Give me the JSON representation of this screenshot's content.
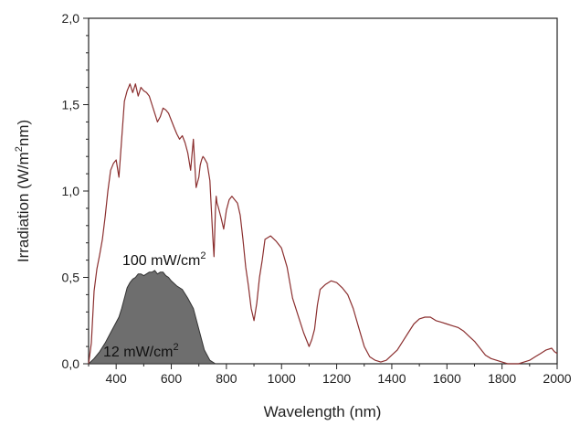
{
  "chart_data": {
    "type": "line",
    "xlabel": "Wavelength (nm)",
    "ylabel_main": "Irradiation (W/m",
    "ylabel_sup": "2",
    "ylabel_end": "nm)",
    "xlim": [
      300,
      2000
    ],
    "ylim": [
      0.0,
      2.0
    ],
    "x_ticks": [
      400,
      600,
      800,
      1000,
      1200,
      1400,
      1600,
      1800,
      2000
    ],
    "x_tick_labels": [
      "400",
      "600",
      "800",
      "1000",
      "1200",
      "1400",
      "1600",
      "1800",
      "2000"
    ],
    "y_ticks": [
      0.0,
      0.5,
      1.0,
      1.5,
      2.0
    ],
    "y_tick_labels": [
      "0,0",
      "0,5",
      "1,0",
      "1,5",
      "2,0"
    ],
    "grid": false,
    "colors": {
      "spectrum_line": "#8b2f2f",
      "filled_area": "#6e6e6e"
    },
    "series": [
      {
        "kind": "line",
        "x": [
          300,
          310,
          320,
          330,
          340,
          350,
          360,
          370,
          380,
          390,
          400,
          410,
          420,
          430,
          440,
          450,
          460,
          470,
          480,
          490,
          500,
          510,
          520,
          530,
          540,
          550,
          560,
          570,
          580,
          590,
          600,
          610,
          620,
          630,
          640,
          650,
          660,
          670,
          680,
          690,
          700,
          705,
          710,
          715,
          720,
          730,
          740,
          750,
          755,
          760,
          763,
          766,
          770,
          780,
          790,
          800,
          810,
          820,
          830,
          840,
          850,
          860,
          870,
          880,
          890,
          900,
          910,
          920,
          930,
          940,
          960,
          980,
          1000,
          1020,
          1040,
          1060,
          1080,
          1100,
          1110,
          1120,
          1130,
          1140,
          1160,
          1180,
          1200,
          1220,
          1240,
          1260,
          1280,
          1300,
          1320,
          1340,
          1360,
          1380,
          1400,
          1420,
          1440,
          1460,
          1480,
          1500,
          1520,
          1540,
          1560,
          1580,
          1600,
          1620,
          1640,
          1660,
          1680,
          1700,
          1720,
          1740,
          1760,
          1780,
          1800,
          1820,
          1840,
          1860,
          1880,
          1900,
          1920,
          1940,
          1960,
          1980,
          1990,
          2000
        ],
        "y": [
          0.0,
          0.12,
          0.42,
          0.55,
          0.63,
          0.72,
          0.85,
          1.0,
          1.12,
          1.16,
          1.18,
          1.08,
          1.3,
          1.52,
          1.58,
          1.62,
          1.57,
          1.62,
          1.55,
          1.6,
          1.58,
          1.57,
          1.55,
          1.5,
          1.45,
          1.4,
          1.43,
          1.48,
          1.47,
          1.45,
          1.41,
          1.37,
          1.33,
          1.3,
          1.32,
          1.28,
          1.22,
          1.12,
          1.3,
          1.02,
          1.08,
          1.15,
          1.18,
          1.2,
          1.19,
          1.16,
          1.06,
          0.75,
          0.62,
          0.88,
          0.97,
          0.93,
          0.91,
          0.85,
          0.78,
          0.89,
          0.95,
          0.97,
          0.95,
          0.93,
          0.86,
          0.72,
          0.56,
          0.45,
          0.32,
          0.25,
          0.35,
          0.5,
          0.6,
          0.72,
          0.74,
          0.71,
          0.67,
          0.56,
          0.38,
          0.28,
          0.18,
          0.1,
          0.14,
          0.2,
          0.34,
          0.43,
          0.46,
          0.48,
          0.47,
          0.44,
          0.4,
          0.32,
          0.21,
          0.1,
          0.04,
          0.02,
          0.01,
          0.02,
          0.05,
          0.08,
          0.13,
          0.18,
          0.23,
          0.26,
          0.27,
          0.27,
          0.25,
          0.24,
          0.23,
          0.22,
          0.21,
          0.19,
          0.16,
          0.13,
          0.09,
          0.05,
          0.03,
          0.02,
          0.01,
          0.0,
          0.0,
          0.0,
          0.01,
          0.02,
          0.04,
          0.06,
          0.08,
          0.09,
          0.07,
          0.06
        ]
      },
      {
        "kind": "area",
        "x": [
          300,
          320,
          340,
          360,
          380,
          400,
          410,
          420,
          430,
          440,
          450,
          460,
          470,
          480,
          490,
          500,
          510,
          520,
          530,
          540,
          550,
          560,
          570,
          580,
          590,
          600,
          620,
          640,
          660,
          680,
          700,
          720,
          740,
          760
        ],
        "y": [
          0.0,
          0.03,
          0.07,
          0.12,
          0.18,
          0.24,
          0.27,
          0.32,
          0.38,
          0.44,
          0.47,
          0.49,
          0.5,
          0.52,
          0.52,
          0.51,
          0.52,
          0.53,
          0.53,
          0.54,
          0.52,
          0.53,
          0.53,
          0.51,
          0.5,
          0.48,
          0.45,
          0.43,
          0.38,
          0.32,
          0.2,
          0.08,
          0.02,
          0.0
        ]
      }
    ],
    "annotations": [
      {
        "id": "high",
        "text": "100 mW/cm",
        "sup": "2"
      },
      {
        "id": "low",
        "text": "12 mW/cm",
        "sup": "2"
      }
    ]
  }
}
